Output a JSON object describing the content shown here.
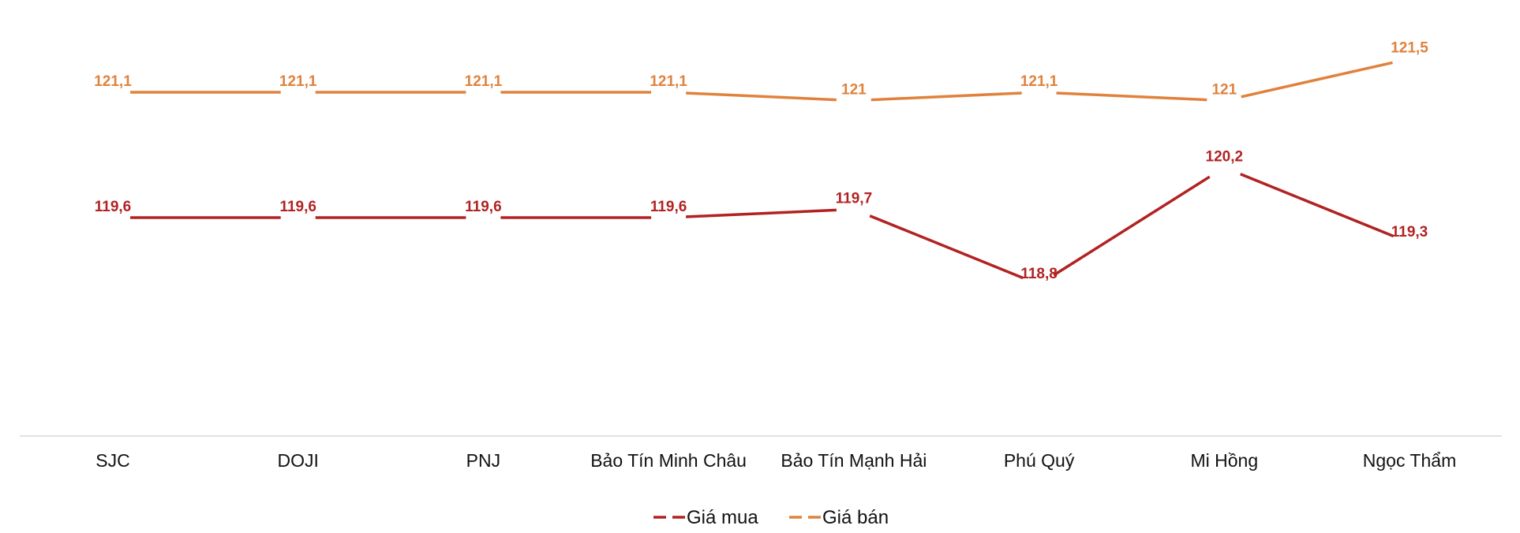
{
  "chart_data": {
    "type": "line",
    "categories": [
      "SJC",
      "DOJI",
      "PNJ",
      "Bảo Tín Minh Châu",
      "Bảo Tín Mạnh Hải",
      "Phú Quý",
      "Mi Hồng",
      "Ngọc Thẩm"
    ],
    "series": [
      {
        "name": "Giá mua",
        "color": "#b22222",
        "values": [
          119.6,
          119.6,
          119.6,
          119.6,
          119.7,
          118.8,
          120.2,
          119.3
        ],
        "labels": [
          "119,6",
          "119,6",
          "119,6",
          "119,6",
          "119,7",
          "118,8",
          "120,2",
          "119,3"
        ]
      },
      {
        "name": "Giá bán",
        "color": "#e0823d",
        "values": [
          121.1,
          121.1,
          121.1,
          121.1,
          121.0,
          121.1,
          121.0,
          121.5
        ],
        "labels": [
          "121,1",
          "121,1",
          "121,1",
          "121,1",
          "121",
          "121,1",
          "121",
          "121,5"
        ]
      }
    ],
    "title": "",
    "xlabel": "",
    "ylabel": "",
    "grid": false,
    "legend_position": "bottom-center",
    "data_labels": true
  }
}
